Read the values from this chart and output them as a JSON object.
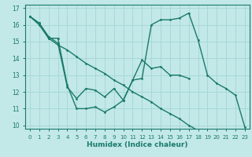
{
  "xlabel": "Humidex (Indice chaleur)",
  "bg_color": "#c2e8e8",
  "grid_color": "#a8d8d8",
  "line_color": "#1a7a6a",
  "xlim": [
    -0.5,
    23.5
  ],
  "ylim": [
    9.8,
    17.2
  ],
  "yticks": [
    10,
    11,
    12,
    13,
    14,
    15,
    16,
    17
  ],
  "xticks": [
    0,
    1,
    2,
    3,
    4,
    5,
    6,
    7,
    8,
    9,
    10,
    11,
    12,
    13,
    14,
    15,
    16,
    17,
    18,
    19,
    20,
    21,
    22,
    23
  ],
  "line1_x": [
    0,
    1,
    2,
    3,
    4,
    5,
    6,
    7,
    8,
    9,
    10,
    11,
    12,
    13,
    14,
    15,
    16,
    17,
    18,
    19,
    20,
    21,
    22,
    23
  ],
  "line1_y": [
    16.5,
    16.1,
    15.2,
    15.2,
    12.4,
    11.0,
    11.0,
    11.1,
    10.8,
    11.1,
    11.5,
    12.7,
    12.8,
    16.0,
    16.3,
    16.3,
    16.4,
    16.7,
    15.1,
    13.0,
    12.5,
    12.2,
    11.8,
    9.9
  ],
  "line2_x": [
    0,
    1,
    2,
    3,
    4,
    5,
    6,
    7,
    8,
    9,
    10,
    11,
    12,
    13,
    14,
    15,
    16,
    17
  ],
  "line2_y": [
    16.5,
    16.1,
    15.3,
    14.9,
    12.3,
    11.6,
    12.2,
    12.1,
    11.7,
    12.2,
    11.5,
    12.7,
    13.9,
    13.4,
    13.5,
    13.0,
    13.0,
    12.8
  ],
  "line3_x": [
    0,
    1,
    2,
    3,
    4,
    5,
    6,
    7,
    8,
    9,
    10,
    11,
    12,
    13,
    14,
    15,
    16,
    17,
    18
  ],
  "line3_y": [
    16.5,
    16.0,
    15.2,
    14.8,
    14.5,
    14.1,
    13.7,
    13.4,
    13.1,
    12.7,
    12.4,
    12.0,
    11.7,
    11.4,
    11.0,
    10.7,
    10.4,
    10.0,
    9.7
  ]
}
